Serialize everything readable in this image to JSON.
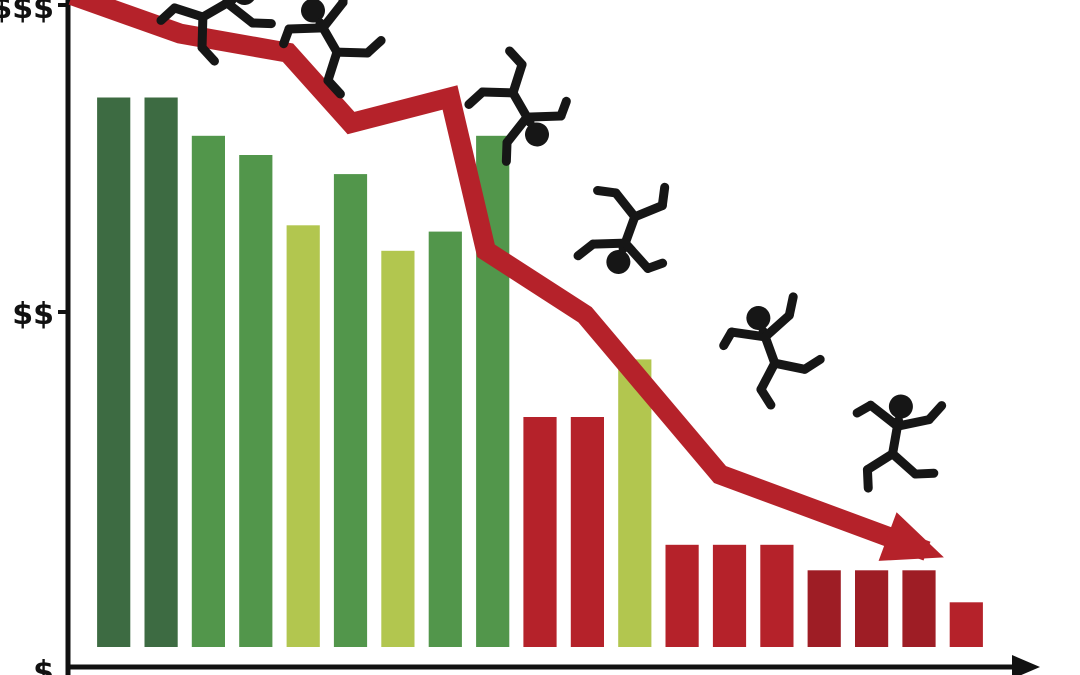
{
  "chart_data": {
    "type": "bar",
    "title": "",
    "xlabel": "",
    "ylabel": "",
    "ylim": [
      0,
      100
    ],
    "grid": false,
    "legend": "none",
    "y_ticks": [
      {
        "label": "$",
        "value": 0
      },
      {
        "label": "$$",
        "value": 54
      },
      {
        "label": "$$$",
        "value": 100
      }
    ],
    "values": [
      86,
      86,
      80,
      77,
      66,
      74,
      62,
      65,
      80,
      36,
      36,
      45,
      16,
      16,
      16,
      12,
      12,
      12,
      7
    ],
    "bar_colors": [
      "#3d6b42",
      "#3d6b42",
      "#52964b",
      "#52964b",
      "#b2c64f",
      "#52964b",
      "#b2c64f",
      "#52964b",
      "#52964b",
      "#b5222a",
      "#b5222a",
      "#b2c64f",
      "#b5222a",
      "#b5222a",
      "#b5222a",
      "#9e1d25",
      "#9e1d25",
      "#9e1d25",
      "#b5222a"
    ],
    "trend_arrow": {
      "color": "#b5222a",
      "points": [
        [
          -2,
          102
        ],
        [
          10,
          96
        ],
        [
          22,
          93
        ],
        [
          29,
          82
        ],
        [
          40,
          86
        ],
        [
          44,
          62
        ],
        [
          55,
          52
        ],
        [
          70,
          27
        ],
        [
          93,
          15
        ]
      ]
    },
    "falling_figures": 6,
    "colors": {
      "axis": "#111111",
      "figure": "#161616"
    }
  }
}
